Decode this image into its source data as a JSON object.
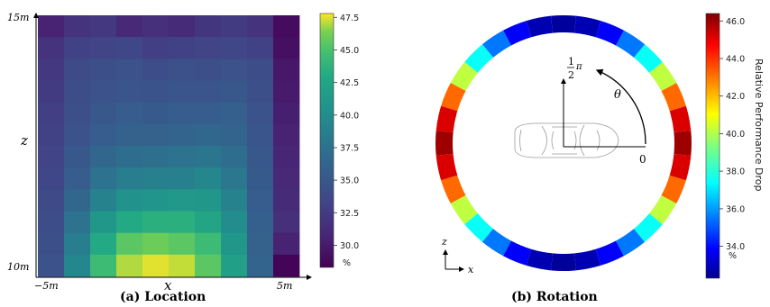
{
  "chart_data": [
    {
      "type": "heatmap",
      "caption": "(a) Location",
      "xlabel": "x",
      "ylabel": "z",
      "x_tick_labels": [
        "−5m",
        "5m"
      ],
      "y_tick_labels": [
        "15m",
        "10m"
      ],
      "colorbar": {
        "range": [
          28.3,
          47.8
        ],
        "ticks": [
          "30.0",
          "32.5",
          "35.0",
          "37.5",
          "40.0",
          "42.5",
          "45.0",
          "47.5"
        ],
        "unit": "%"
      },
      "rows_top_to_bottom": [
        [
          30.5,
          31.8,
          32.2,
          31.0,
          31.5,
          31.2,
          32.0,
          32.5,
          31.8,
          29.0
        ],
        [
          31.8,
          33.0,
          33.2,
          33.5,
          32.8,
          33.0,
          33.2,
          33.5,
          33.0,
          29.3
        ],
        [
          32.2,
          33.8,
          34.2,
          34.5,
          34.0,
          34.3,
          34.2,
          34.5,
          34.0,
          29.8
        ],
        [
          32.5,
          34.0,
          34.5,
          34.8,
          34.6,
          34.8,
          34.8,
          35.0,
          34.2,
          30.0
        ],
        [
          32.8,
          34.2,
          35.0,
          35.5,
          35.2,
          35.5,
          35.5,
          35.8,
          34.5,
          30.3
        ],
        [
          33.0,
          34.5,
          35.5,
          36.0,
          36.0,
          36.2,
          36.5,
          36.2,
          34.8,
          30.5
        ],
        [
          33.2,
          35.0,
          36.5,
          37.0,
          37.2,
          37.5,
          37.8,
          37.0,
          35.0,
          30.8
        ],
        [
          33.5,
          35.5,
          37.5,
          38.5,
          38.8,
          38.8,
          39.5,
          38.0,
          35.2,
          31.0
        ],
        [
          33.8,
          36.5,
          39.0,
          40.5,
          40.8,
          41.2,
          41.0,
          39.0,
          35.5,
          31.2
        ],
        [
          34.0,
          37.5,
          41.0,
          43.0,
          43.5,
          43.5,
          42.5,
          40.0,
          35.8,
          31.5
        ],
        [
          34.2,
          38.5,
          43.0,
          45.5,
          46.0,
          45.5,
          44.5,
          41.0,
          36.0,
          30.5
        ],
        [
          34.5,
          39.5,
          44.5,
          47.0,
          47.5,
          47.2,
          45.5,
          42.0,
          36.2,
          28.5
        ]
      ]
    },
    {
      "type": "heatmap",
      "caption": "(b) Rotation",
      "subtype": "polar-ring",
      "segments": 32,
      "start_angle_deg": 0,
      "direction": "counterclockwise",
      "values": [
        46.0,
        45.2,
        43.2,
        40.2,
        37.5,
        35.5,
        33.8,
        32.8,
        32.5,
        32.8,
        33.8,
        35.5,
        37.5,
        40.2,
        43.2,
        45.2,
        46.0,
        45.2,
        43.2,
        40.2,
        37.5,
        35.5,
        33.8,
        32.8,
        32.5,
        32.8,
        33.8,
        35.5,
        37.5,
        40.2,
        43.2,
        45.2
      ],
      "colorbar": {
        "range": [
          32.3,
          46.4
        ],
        "ticks": [
          "34.0",
          "36.0",
          "38.0",
          "40.0",
          "42.0",
          "44.0",
          "46.0"
        ],
        "unit": "%",
        "label": "Relative Performance Drop"
      },
      "annotations": {
        "angle_symbol": "θ",
        "zero_label": "0",
        "half_pi_num": "1",
        "half_pi_den": "2",
        "pi_symbol": "π",
        "axis_z": "z",
        "axis_x": "x"
      }
    }
  ]
}
